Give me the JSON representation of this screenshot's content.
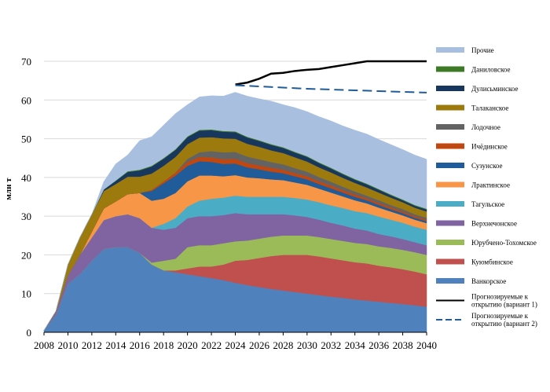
{
  "chart_data": {
    "type": "area",
    "stacked": true,
    "title": "",
    "xlabel": "",
    "ylabel": "млн т",
    "ylim": [
      0,
      70
    ],
    "yticks": [
      0,
      10,
      20,
      30,
      40,
      50,
      60,
      70
    ],
    "xlim": [
      2008,
      2040
    ],
    "xticks": [
      2008,
      2010,
      2012,
      2014,
      2016,
      2018,
      2020,
      2022,
      2024,
      2026,
      2028,
      2030,
      2032,
      2034,
      2036,
      2038,
      2040
    ],
    "x": [
      2008,
      2009,
      2010,
      2011,
      2012,
      2013,
      2014,
      2015,
      2016,
      2017,
      2018,
      2019,
      2020,
      2021,
      2022,
      2023,
      2024,
      2025,
      2026,
      2027,
      2028,
      2029,
      2030,
      2031,
      2032,
      2033,
      2034,
      2035,
      2036,
      2037,
      2038,
      2039,
      2040
    ],
    "series": [
      {
        "name": "Ванкорское",
        "color": "#4f81bd",
        "values": [
          0.5,
          4.5,
          12.5,
          15.0,
          18.5,
          21.5,
          22.0,
          22.0,
          20.5,
          17.5,
          16.0,
          15.5,
          15.0,
          14.5,
          14.0,
          13.5,
          12.8,
          12.2,
          11.7,
          11.2,
          10.8,
          10.4,
          10.0,
          9.6,
          9.2,
          8.9,
          8.5,
          8.2,
          7.9,
          7.6,
          7.3,
          7.0,
          6.6
        ]
      },
      {
        "name": "Куюмбинское",
        "color": "#c0504d",
        "values": [
          0,
          0,
          0,
          0,
          0,
          0,
          0,
          0,
          0,
          0,
          0,
          0.5,
          1.5,
          2.5,
          3.0,
          4.0,
          5.7,
          6.5,
          7.5,
          8.5,
          9.2,
          9.6,
          10.0,
          10.0,
          9.9,
          9.7,
          9.6,
          9.6,
          9.3,
          9.2,
          9.0,
          8.7,
          8.4
        ]
      },
      {
        "name": "Юрубчено-Тохомское",
        "color": "#9bbb59",
        "values": [
          0,
          0,
          0,
          0,
          0,
          0,
          0,
          0,
          0,
          0.5,
          2.5,
          3.0,
          5.5,
          5.5,
          5.5,
          5.5,
          5.0,
          5.0,
          5.0,
          5.0,
          5.0,
          5.0,
          5.0,
          5.0,
          5.0,
          5.0,
          5.0,
          5.0,
          5.0,
          5.0,
          5.0,
          5.0,
          5.0
        ]
      },
      {
        "name": "Верхнечонское",
        "color": "#8064a2",
        "values": [
          0,
          0.8,
          2.2,
          5.0,
          6.0,
          7.5,
          8.0,
          8.5,
          9.0,
          9.0,
          8.0,
          8.0,
          7.5,
          7.5,
          7.5,
          7.3,
          7.3,
          6.8,
          6.3,
          5.8,
          5.5,
          5.2,
          4.8,
          4.5,
          4.2,
          4.0,
          3.7,
          3.5,
          3.2,
          3.0,
          2.8,
          2.6,
          2.5
        ]
      },
      {
        "name": "Тагульское",
        "color": "#4bacc6",
        "values": [
          0,
          0,
          0,
          0,
          0,
          0,
          0,
          0,
          0,
          0,
          1.5,
          2.5,
          3.0,
          4.0,
          4.5,
          4.5,
          4.5,
          4.5,
          4.5,
          4.5,
          4.5,
          4.5,
          4.5,
          4.5,
          4.5,
          4.5,
          4.5,
          4.5,
          4.5,
          4.3,
          4.2,
          4.0,
          4.0
        ]
      },
      {
        "name": "Лрактинское",
        "color": "#f79646",
        "values": [
          0,
          0,
          0,
          0,
          1.5,
          3.0,
          3.8,
          5.2,
          6.5,
          7.0,
          6.5,
          6.5,
          6.5,
          6.5,
          6.0,
          5.5,
          5.3,
          5.0,
          4.8,
          4.5,
          4.3,
          4.0,
          3.8,
          3.5,
          3.3,
          3.0,
          2.8,
          2.5,
          2.3,
          2.1,
          1.9,
          1.8,
          1.7
        ]
      },
      {
        "name": "Сузунское",
        "color": "#1f5c99",
        "values": [
          0,
          0,
          0,
          0,
          0,
          0,
          0,
          0,
          0,
          2.5,
          4.0,
          4.5,
          4.0,
          3.7,
          3.5,
          3.2,
          3.0,
          2.6,
          2.3,
          2.0,
          1.8,
          1.6,
          1.4,
          1.2,
          1.1,
          1.0,
          0.9,
          0.8,
          0.7,
          0.6,
          0.6,
          0.5,
          0.5
        ]
      },
      {
        "name": "Ичёдинское",
        "color": "#c0470f",
        "values": [
          0,
          0,
          0,
          0,
          0,
          0,
          0,
          0,
          0,
          0.3,
          0.5,
          0.8,
          1.0,
          1.1,
          1.2,
          1.2,
          1.2,
          1.1,
          1.0,
          1.0,
          0.9,
          0.8,
          0.8,
          0.7,
          0.7,
          0.6,
          0.6,
          0.5,
          0.5,
          0.5,
          0.4,
          0.4,
          0.4
        ]
      },
      {
        "name": "Лодочное",
        "color": "#636363",
        "values": [
          0,
          0,
          0,
          0,
          0,
          0,
          0,
          0,
          0,
          0,
          0,
          0,
          0.8,
          1.2,
          1.6,
          1.8,
          1.8,
          1.7,
          1.6,
          1.5,
          1.4,
          1.3,
          1.2,
          1.1,
          1.0,
          0.9,
          0.8,
          0.7,
          0.7,
          0.6,
          0.6,
          0.5,
          0.5
        ]
      },
      {
        "name": "Талаканское",
        "color": "#9c7a0e",
        "values": [
          0,
          0.2,
          2.8,
          4.5,
          4.5,
          4.5,
          4.5,
          4.5,
          4.2,
          4.2,
          4.0,
          4.0,
          3.8,
          3.8,
          3.6,
          3.6,
          3.4,
          3.3,
          3.2,
          3.0,
          2.9,
          2.8,
          2.6,
          2.5,
          2.4,
          2.3,
          2.2,
          2.1,
          2.0,
          1.9,
          1.8,
          1.7,
          1.6
        ]
      },
      {
        "name": "Дулисьминское",
        "color": "#17375e",
        "values": [
          0,
          0,
          0,
          0,
          0,
          0.4,
          0.8,
          1.2,
          1.6,
          1.8,
          1.8,
          1.8,
          1.8,
          1.8,
          1.8,
          1.7,
          1.7,
          1.6,
          1.5,
          1.4,
          1.3,
          1.2,
          1.2,
          1.1,
          1.0,
          0.9,
          0.8,
          0.8,
          0.7,
          0.6,
          0.5,
          0.5,
          0.5
        ]
      },
      {
        "name": "Даниловское",
        "color": "#3d7a26",
        "values": [
          0,
          0,
          0,
          0,
          0,
          0,
          0.1,
          0.2,
          0.2,
          0.2,
          0.2,
          0.2,
          0.2,
          0.2,
          0.2,
          0.2,
          0.2,
          0.2,
          0.2,
          0.2,
          0.2,
          0.2,
          0.2,
          0.2,
          0.2,
          0.2,
          0.2,
          0.2,
          0.2,
          0.2,
          0.2,
          0.2,
          0.2
        ]
      },
      {
        "name": "Прочие",
        "color": "#a9bfe0",
        "values": [
          0,
          0,
          0,
          0,
          0,
          2.0,
          4.3,
          4.2,
          7.5,
          7.5,
          8.5,
          9.2,
          8.2,
          8.5,
          8.7,
          9.0,
          10.1,
          10.5,
          10.7,
          11.1,
          11.0,
          11.4,
          11.5,
          11.8,
          12.1,
          12.3,
          12.6,
          12.8,
          12.8,
          12.9,
          12.9,
          12.9,
          12.8
        ]
      }
    ],
    "lines": [
      {
        "name": "Прогнозируемые к открытию (вариант 1)",
        "color": "#000000",
        "style": "solid",
        "x": [
          2024,
          2025,
          2026,
          2027,
          2028,
          2029,
          2030,
          2031,
          2032,
          2033,
          2034,
          2035,
          2036,
          2037,
          2038,
          2039,
          2040
        ],
        "values": [
          64.0,
          64.5,
          65.5,
          66.8,
          67.0,
          67.5,
          67.8,
          68.0,
          68.5,
          69.0,
          69.5,
          70.0,
          70.0,
          70.0,
          70.0,
          70.0,
          70.0
        ]
      },
      {
        "name": "Прогнозируемые к открытию (вариант 2)",
        "color": "#1f5c99",
        "style": "dashed",
        "x": [
          2024,
          2026,
          2028,
          2030,
          2032,
          2034,
          2036,
          2038,
          2040
        ],
        "values": [
          63.8,
          63.5,
          63.2,
          62.9,
          62.7,
          62.5,
          62.3,
          62.1,
          61.9
        ]
      }
    ],
    "legend": {
      "position": "right",
      "order": [
        "Прочие",
        "Даниловское",
        "Дулисьминское",
        "Талаканское",
        "Лодочное",
        "Ичёдинское",
        "Сузунское",
        "Лрактинское",
        "Тагульское",
        "Верхнечонское",
        "Юрубчено-Тохомское",
        "Куюмбинское",
        "Ванкорское",
        "Прогнозируемые к открытию (вариант 1)",
        "Прогнозируемые к открытию (вариант 2)"
      ],
      "line_labels": [
        [
          "Прогнозируемые к",
          "открытию (вариант 1)"
        ],
        [
          "Прогнозируемые к",
          "открытию (вариант 2)"
        ]
      ]
    }
  }
}
